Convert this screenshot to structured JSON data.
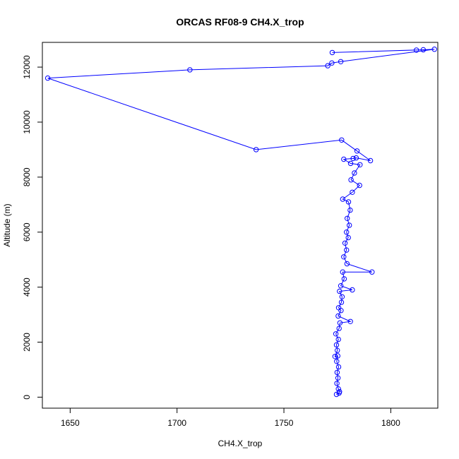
{
  "chart_data": {
    "type": "line",
    "title": "ORCAS RF08-9 CH4.X_trop",
    "xlabel": "CH4.X_trop",
    "ylabel": "Altitude (m)",
    "xlim": [
      1637,
      1822
    ],
    "ylim": [
      -400,
      12900
    ],
    "xticks": [
      1650,
      1700,
      1750,
      1800
    ],
    "yticks": [
      0,
      2000,
      4000,
      6000,
      8000,
      10000,
      12000
    ],
    "grid": false,
    "marker": "open-circle",
    "series": [
      {
        "color": "#0000ff",
        "points": [
          [
            1774.6,
            100
          ],
          [
            1775.8,
            150
          ],
          [
            1776.0,
            200
          ],
          [
            1775.5,
            300
          ],
          [
            1774.8,
            500
          ],
          [
            1775.3,
            700
          ],
          [
            1774.9,
            900
          ],
          [
            1775.6,
            1100
          ],
          [
            1774.7,
            1300
          ],
          [
            1775.2,
            1500
          ],
          [
            1773.9,
            1480
          ],
          [
            1775.0,
            1700
          ],
          [
            1774.6,
            1900
          ],
          [
            1775.5,
            2100
          ],
          [
            1774.3,
            2300
          ],
          [
            1775.8,
            2500
          ],
          [
            1776.2,
            2700
          ],
          [
            1781.1,
            2750
          ],
          [
            1775.4,
            2950
          ],
          [
            1776.7,
            3150
          ],
          [
            1775.6,
            3250
          ],
          [
            1776.9,
            3450
          ],
          [
            1777.2,
            3650
          ],
          [
            1776.0,
            3850
          ],
          [
            1782.0,
            3900
          ],
          [
            1776.6,
            4050
          ],
          [
            1778.2,
            4300
          ],
          [
            1777.5,
            4550
          ],
          [
            1791.2,
            4550
          ],
          [
            1779.5,
            4850
          ],
          [
            1778.0,
            5100
          ],
          [
            1779.3,
            5350
          ],
          [
            1778.6,
            5600
          ],
          [
            1780.1,
            5800
          ],
          [
            1779.3,
            6000
          ],
          [
            1780.6,
            6250
          ],
          [
            1779.6,
            6500
          ],
          [
            1781.0,
            6800
          ],
          [
            1780.2,
            7100
          ],
          [
            1777.5,
            7200
          ],
          [
            1782.0,
            7450
          ],
          [
            1785.4,
            7700
          ],
          [
            1781.4,
            7900
          ],
          [
            1783.0,
            8150
          ],
          [
            1785.6,
            8450
          ],
          [
            1781.2,
            8500
          ],
          [
            1778.0,
            8650
          ],
          [
            1782.4,
            8680
          ],
          [
            1783.8,
            8700
          ],
          [
            1790.5,
            8600
          ],
          [
            1784.2,
            8950
          ],
          [
            1777.0,
            9350
          ],
          [
            1737.0,
            9000
          ],
          [
            1639.5,
            11600
          ],
          [
            1706.0,
            11900
          ],
          [
            1770.5,
            12050
          ],
          [
            1772.4,
            12150
          ],
          [
            1776.6,
            12200
          ],
          [
            1820.4,
            12650
          ],
          [
            1815.2,
            12630
          ],
          [
            1772.6,
            12530
          ],
          [
            1812.0,
            12620
          ]
        ]
      }
    ]
  }
}
